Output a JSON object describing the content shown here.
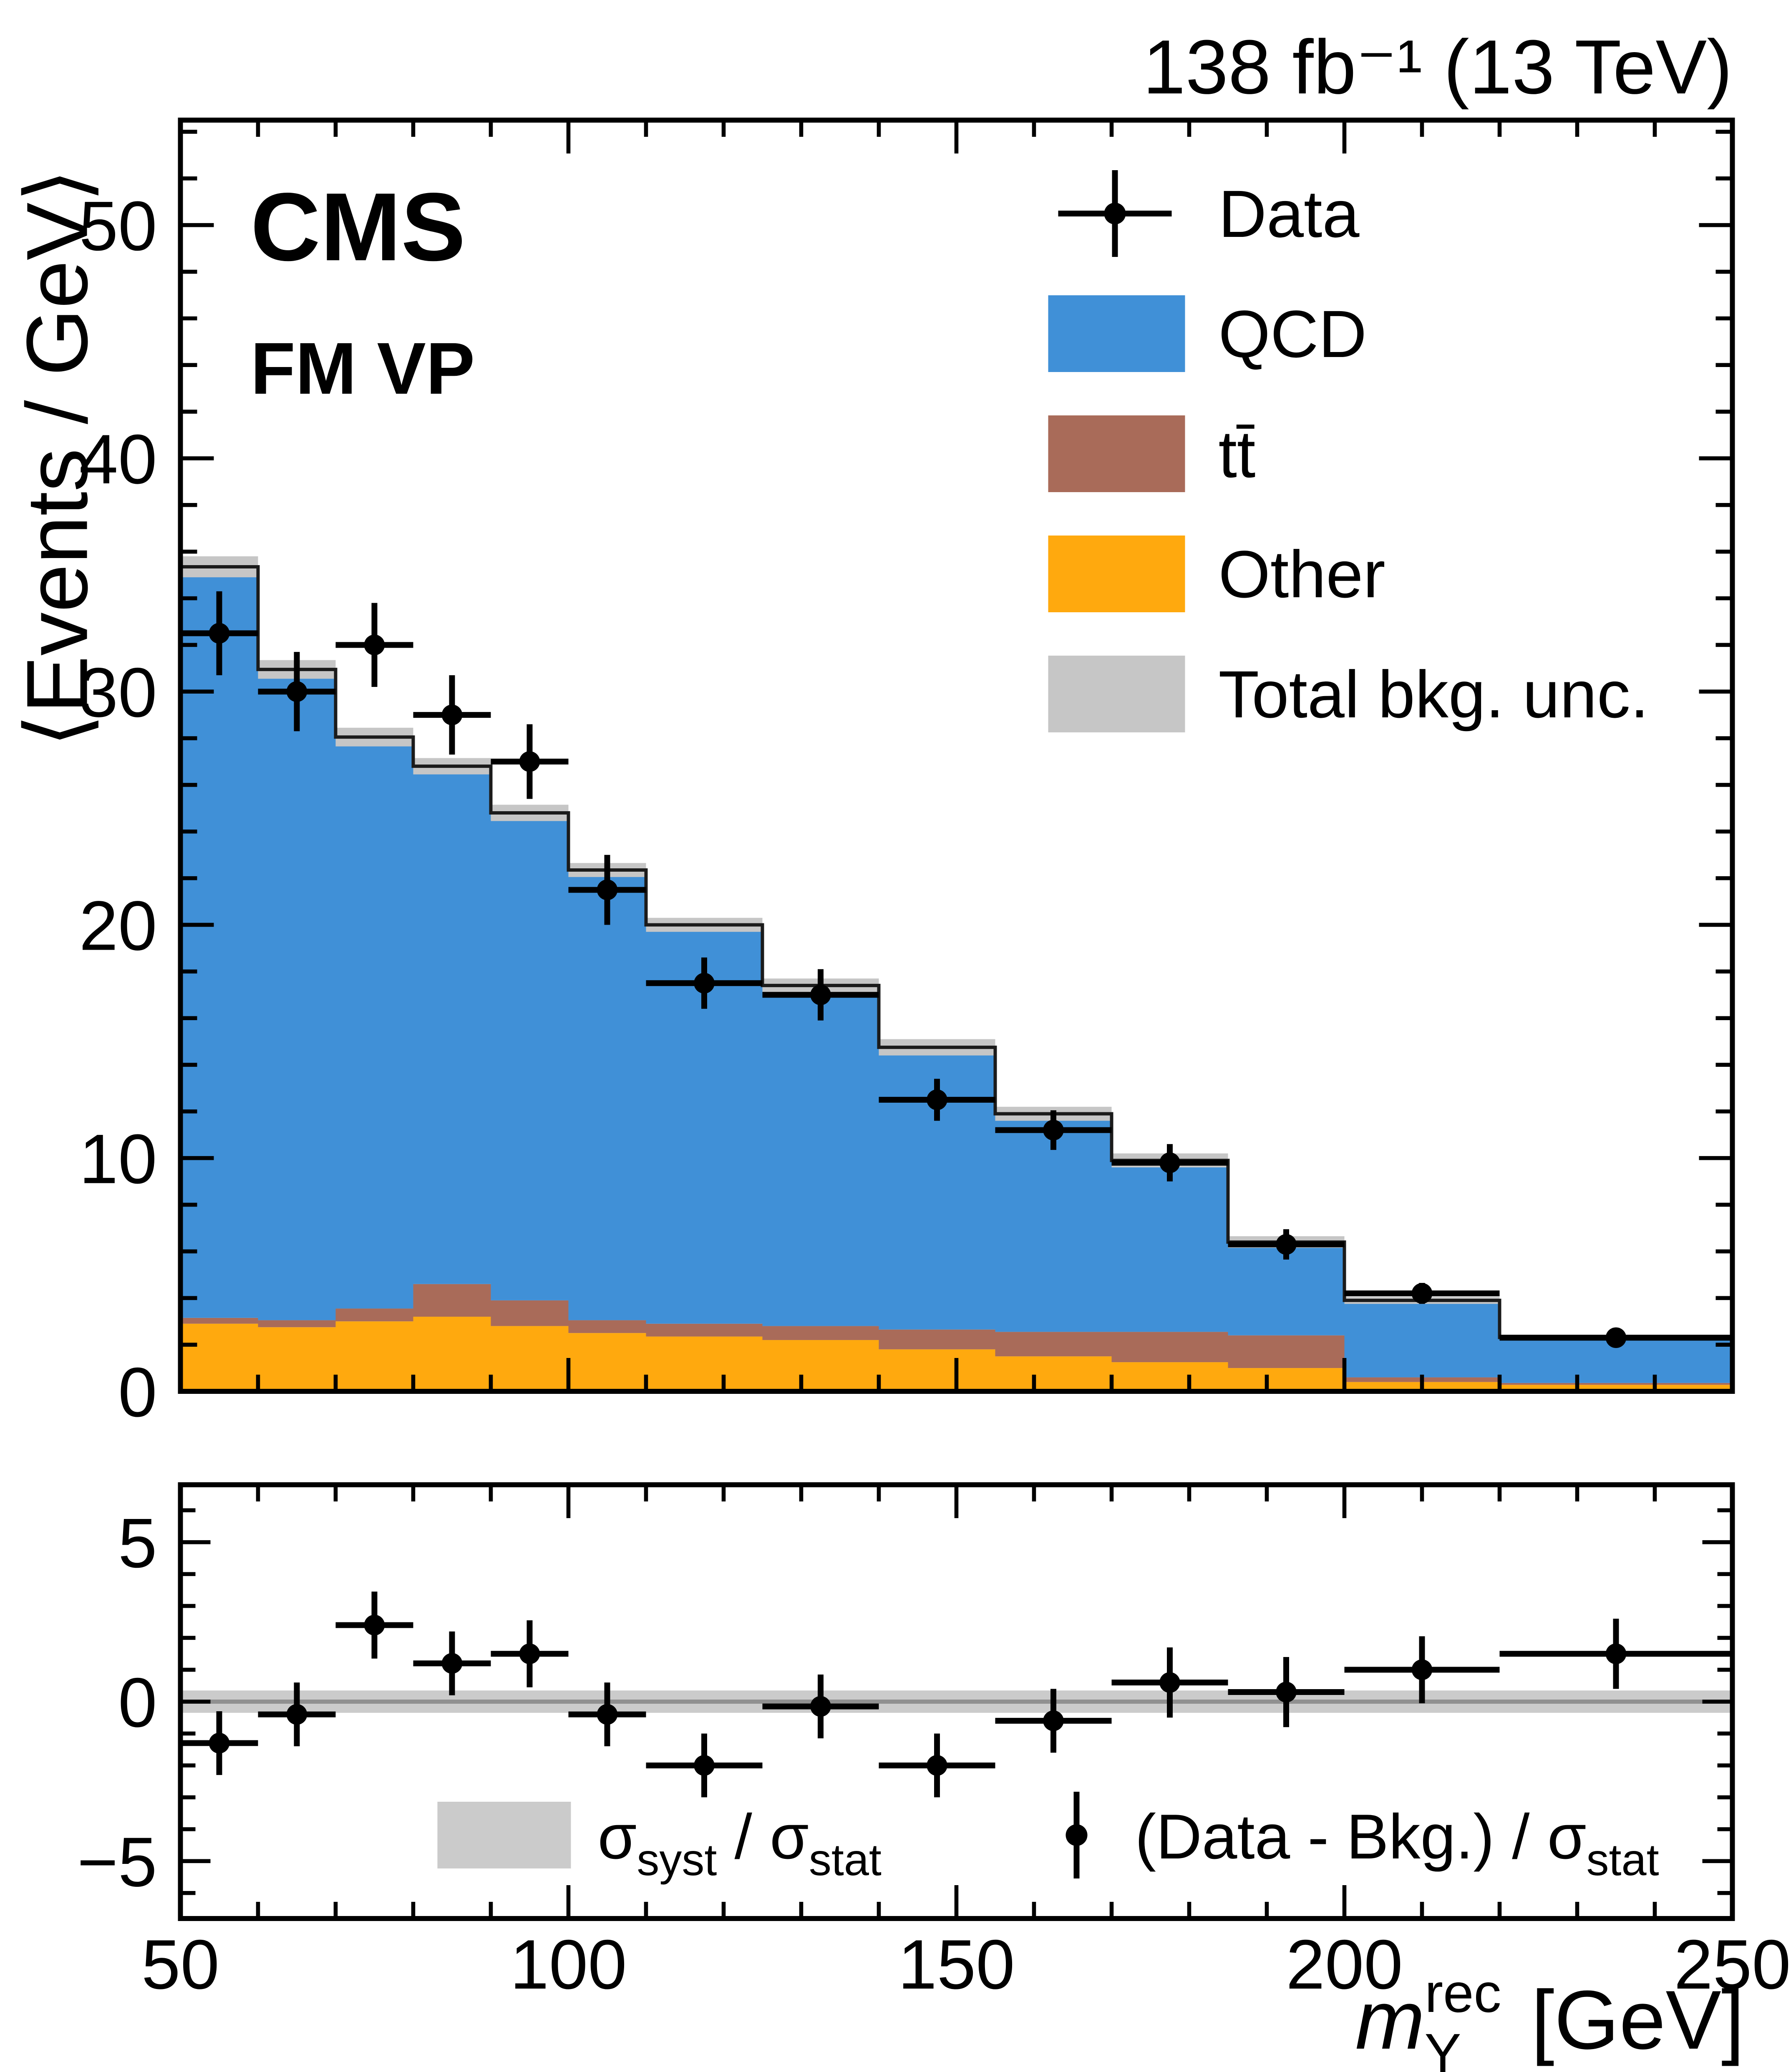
{
  "header": {
    "lumi_text": "138 fb⁻¹ (13 TeV)"
  },
  "labels": {
    "experiment": "CMS",
    "category": "FM VP",
    "y_title": "⟨Events / GeV⟩",
    "x_title": {
      "symbol": "m",
      "sup": "rec",
      "sub": "Y",
      "unit": " [GeV]"
    }
  },
  "legend": {
    "entries": [
      {
        "id": "data",
        "label": "Data",
        "type": "marker",
        "color": "#000000"
      },
      {
        "id": "qcd",
        "label": "QCD",
        "type": "fill",
        "color": "#4090d7"
      },
      {
        "id": "ttbar",
        "label": "tt̄",
        "type": "fill",
        "color": "#a96b59"
      },
      {
        "id": "other",
        "label": "Other",
        "type": "fill",
        "color": "#ffa90e"
      },
      {
        "id": "unc",
        "label": "Total bkg. unc.",
        "type": "fill",
        "color": "#c6c6c6"
      }
    ]
  },
  "ratio_legend": {
    "band": {
      "s1": "σ",
      "sub1": "syst",
      "mid": " / ",
      "s2": "σ",
      "sub2": "stat"
    },
    "points": {
      "pre": "(Data - Bkg.) / ",
      "sigma": "σ",
      "sub": "stat"
    }
  },
  "chart_data": {
    "type": "stacked-histogram-with-ratio",
    "title": "CMS FM VP",
    "xlabel": "m_Y^rec [GeV]",
    "ylabel_main": "<Events / GeV>",
    "ylabel_ratio": "(Data - Bkg.) / sigma_stat",
    "x_range": [
      50,
      250
    ],
    "y_range_main": [
      0,
      54.5
    ],
    "y_range_ratio": [
      -6.8,
      6.8
    ],
    "x_ticks": [
      50,
      100,
      150,
      200,
      250
    ],
    "y_ticks_main": [
      0,
      10,
      20,
      30,
      40,
      50
    ],
    "y_ticks_ratio": [
      -5,
      0,
      5
    ],
    "grid": false,
    "legend_position": "top-right",
    "bin_edges": [
      50,
      60,
      70,
      80,
      90,
      100,
      110,
      125,
      140,
      155,
      170,
      185,
      200,
      220,
      250
    ],
    "series": [
      {
        "id": "other",
        "name": "Other",
        "color": "#ffa90e",
        "values": [
          2.9,
          2.75,
          3.0,
          3.2,
          2.8,
          2.5,
          2.35,
          2.2,
          1.8,
          1.5,
          1.25,
          1.0,
          0.4,
          0.28
        ]
      },
      {
        "id": "ttbar",
        "name": "ttbar",
        "color": "#a96b59",
        "values": [
          0.25,
          0.3,
          0.55,
          1.4,
          1.1,
          0.55,
          0.55,
          0.6,
          0.85,
          1.05,
          1.3,
          1.4,
          0.2,
          0.08
        ]
      },
      {
        "id": "qcd",
        "name": "QCD",
        "color": "#4090d7",
        "values": [
          32.2,
          27.9,
          24.5,
          22.2,
          20.9,
          19.3,
          17.1,
          14.6,
          12.1,
          9.35,
          7.35,
          4.0,
          3.3,
          1.95
        ]
      }
    ],
    "total_unc": [
      0.45,
      0.4,
      0.4,
      0.35,
      0.35,
      0.3,
      0.3,
      0.3,
      0.35,
      0.3,
      0.3,
      0.25,
      0.15,
      0.12
    ],
    "unc_color": "#c6c6c6",
    "data_points": {
      "x": [
        55,
        65,
        75,
        85,
        95,
        105,
        117.5,
        132.5,
        147.5,
        162.5,
        177.5,
        192.5,
        210,
        235
      ],
      "xerr": [
        5,
        5,
        5,
        5,
        5,
        5,
        7.5,
        7.5,
        7.5,
        7.5,
        7.5,
        7.5,
        10,
        15
      ],
      "y": [
        32.5,
        30.0,
        32.0,
        29.0,
        27.0,
        21.5,
        17.5,
        17.0,
        12.5,
        11.2,
        9.8,
        6.3,
        4.2,
        2.3
      ],
      "yerr": [
        1.8,
        1.7,
        1.8,
        1.7,
        1.6,
        1.5,
        1.1,
        1.1,
        0.9,
        0.85,
        0.8,
        0.65,
        0.45,
        0.28
      ]
    },
    "ratio": {
      "values": [
        -1.3,
        -0.4,
        2.4,
        1.2,
        1.5,
        -0.4,
        -2.0,
        -0.15,
        -2.0,
        -0.6,
        0.6,
        0.3,
        1.0,
        1.5
      ],
      "errors": [
        1.0,
        1.0,
        1.05,
        1.0,
        1.05,
        1.0,
        1.0,
        1.0,
        1.0,
        1.0,
        1.1,
        1.1,
        1.05,
        1.1
      ],
      "syst_band": 0.35,
      "band_color": "#cbcbcb"
    }
  }
}
